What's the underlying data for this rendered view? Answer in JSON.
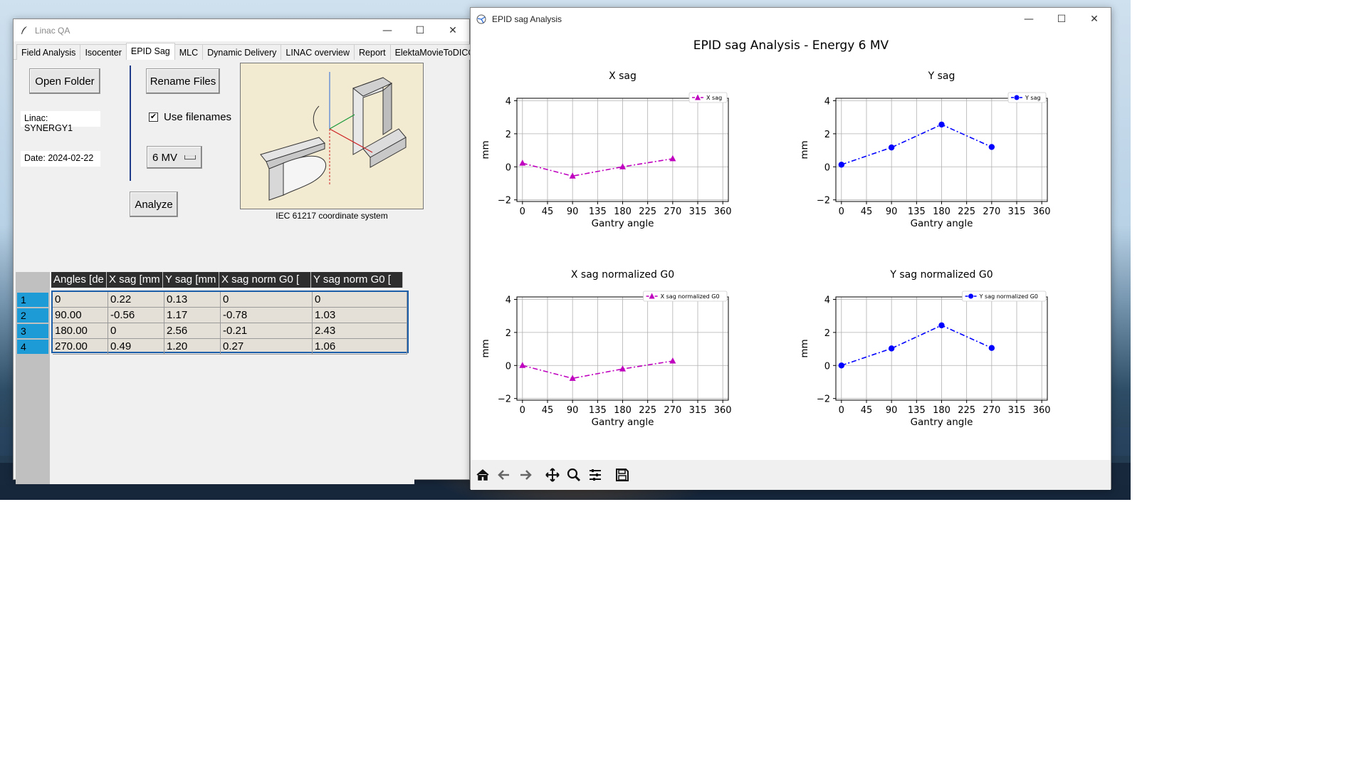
{
  "linac_window": {
    "title": "Linac QA",
    "controls": {
      "minimize": "—",
      "maximize": "☐",
      "close": "✕"
    },
    "tabs": [
      {
        "label": "Field Analysis",
        "active": false
      },
      {
        "label": "Isocenter",
        "active": false
      },
      {
        "label": "EPID Sag",
        "active": true
      },
      {
        "label": "MLC",
        "active": false
      },
      {
        "label": "Dynamic Delivery",
        "active": false
      },
      {
        "label": "LINAC overview",
        "active": false
      },
      {
        "label": "Report",
        "active": false
      },
      {
        "label": "ElektaMovieToDICOM",
        "active": false
      }
    ],
    "open_folder_label": "Open Folder",
    "rename_files_label": "Rename Files",
    "linac_info": "Linac: SYNERGY1",
    "date_info": "Date: 2024-02-22",
    "use_filenames_label": "Use filenames",
    "use_filenames_checked": true,
    "energy_selected": "6 MV",
    "analyze_label": "Analyze",
    "figure_caption": "IEC 61217 coordinate system",
    "table": {
      "columns": [
        "Angles [de",
        "X sag [mm",
        "Y sag [mm",
        "X sag norm G0 [",
        "Y sag norm G0 ["
      ],
      "row_labels": [
        "1",
        "2",
        "3",
        "4"
      ],
      "rows": [
        [
          "0",
          "0.22",
          "0.13",
          "0",
          "0"
        ],
        [
          "90.00",
          "-0.56",
          "1.17",
          "-0.78",
          "1.03"
        ],
        [
          "180.00",
          "0",
          "2.56",
          "-0.21",
          "2.43"
        ],
        [
          "270.00",
          "0.49",
          "1.20",
          "0.27",
          "1.06"
        ]
      ]
    }
  },
  "epid_window": {
    "title": "EPID sag Analysis",
    "controls": {
      "minimize": "—",
      "maximize": "☐",
      "close": "✕"
    },
    "figure_title": "EPID sag Analysis - Energy  6 MV",
    "toolbar": [
      "home-icon",
      "back-icon",
      "forward-icon",
      "pan-icon",
      "zoom-icon",
      "configure-icon",
      "save-icon"
    ]
  },
  "chart_data": [
    {
      "type": "line",
      "title": "X sag",
      "xlabel": "Gantry angle",
      "ylabel": "mm",
      "xlim": [
        0,
        360
      ],
      "ylim": [
        -2,
        4
      ],
      "xticks": [
        "0",
        "45",
        "90",
        "135",
        "180",
        "225",
        "270",
        "315",
        "360"
      ],
      "yticks": [
        "−2",
        "0",
        "2",
        "4"
      ],
      "grid": true,
      "legend_position": "top-right",
      "series": [
        {
          "name": "X sag",
          "x": [
            0,
            90,
            180,
            270
          ],
          "y": [
            0.22,
            -0.56,
            0,
            0.49
          ],
          "color": "#bf00bf",
          "marker": "triangle",
          "linestyle": "dashdot"
        }
      ]
    },
    {
      "type": "line",
      "title": "Y sag",
      "xlabel": "Gantry angle",
      "ylabel": "mm",
      "xlim": [
        0,
        360
      ],
      "ylim": [
        -2,
        4
      ],
      "xticks": [
        "0",
        "45",
        "90",
        "135",
        "180",
        "225",
        "270",
        "315",
        "360"
      ],
      "yticks": [
        "−2",
        "0",
        "2",
        "4"
      ],
      "grid": true,
      "legend_position": "top-right",
      "series": [
        {
          "name": "Y sag",
          "x": [
            0,
            90,
            180,
            270
          ],
          "y": [
            0.13,
            1.17,
            2.56,
            1.2
          ],
          "color": "#0000ff",
          "marker": "circle",
          "linestyle": "dashdot"
        }
      ]
    },
    {
      "type": "line",
      "title": "X sag normalized G0",
      "xlabel": "Gantry angle",
      "ylabel": "mm",
      "xlim": [
        0,
        360
      ],
      "ylim": [
        -2,
        4
      ],
      "xticks": [
        "0",
        "45",
        "90",
        "135",
        "180",
        "225",
        "270",
        "315",
        "360"
      ],
      "yticks": [
        "−2",
        "0",
        "2",
        "4"
      ],
      "grid": true,
      "legend_position": "top-right",
      "series": [
        {
          "name": "X sag normalized G0",
          "x": [
            0,
            90,
            180,
            270
          ],
          "y": [
            0,
            -0.78,
            -0.21,
            0.27
          ],
          "color": "#bf00bf",
          "marker": "triangle",
          "linestyle": "dashdot"
        }
      ]
    },
    {
      "type": "line",
      "title": "Y sag normalized G0",
      "xlabel": "Gantry angle",
      "ylabel": "mm",
      "xlim": [
        0,
        360
      ],
      "ylim": [
        -2,
        4
      ],
      "xticks": [
        "0",
        "45",
        "90",
        "135",
        "180",
        "225",
        "270",
        "315",
        "360"
      ],
      "yticks": [
        "−2",
        "0",
        "2",
        "4"
      ],
      "grid": true,
      "legend_position": "top-right",
      "series": [
        {
          "name": "Y sag normalized G0",
          "x": [
            0,
            90,
            180,
            270
          ],
          "y": [
            0,
            1.03,
            2.43,
            1.06
          ],
          "color": "#0000ff",
          "marker": "circle",
          "linestyle": "dashdot"
        }
      ]
    }
  ]
}
